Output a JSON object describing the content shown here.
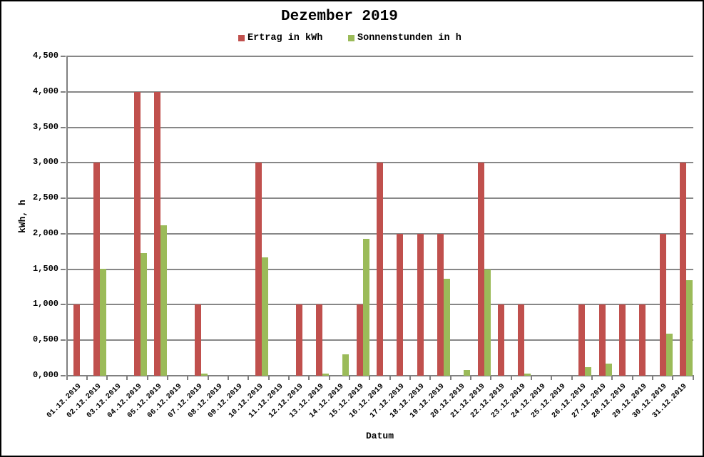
{
  "title": "Dezember 2019",
  "legend": [
    {
      "label": "Ertrag in kWh",
      "color": "#C0504D"
    },
    {
      "label": "Sonnenstunden in h",
      "color": "#9BBB59"
    }
  ],
  "axes": {
    "x_title": "Datum",
    "y_title": "kWh, h",
    "y_tick_labels": [
      "0,000",
      "0,500",
      "1,000",
      "1,500",
      "2,000",
      "2,500",
      "3,000",
      "3,500",
      "4,000",
      "4,500"
    ]
  },
  "colors": {
    "gridline": "#878787",
    "axis": "#808080",
    "frame_border": "#000000",
    "background": "#FFFFFF"
  },
  "chart_data": {
    "type": "bar",
    "title": "Dezember 2019",
    "xlabel": "Datum",
    "ylabel": "kWh, h",
    "ylim": [
      0,
      4500
    ],
    "ytick_step": 500,
    "grid": true,
    "legend_position": "top",
    "categories": [
      "01.12.2019",
      "02.12.2019",
      "03.12.2019",
      "04.12.2019",
      "05.12.2019",
      "06.12.2019",
      "07.12.2019",
      "08.12.2019",
      "09.12.2019",
      "10.12.2019",
      "11.12.2019",
      "12.12.2019",
      "13.12.2019",
      "14.12.2019",
      "15.12.2019",
      "16.12.2019",
      "17.12.2019",
      "18.12.2019",
      "19.12.2019",
      "20.12.2019",
      "21.12.2019",
      "22.12.2019",
      "23.12.2019",
      "24.12.2019",
      "25.12.2019",
      "26.12.2019",
      "27.12.2019",
      "28.12.2019",
      "29.12.2019",
      "30.12.2019",
      "31.12.2019"
    ],
    "series": [
      {
        "name": "Ertrag in kWh",
        "color": "#C0504D",
        "values": [
          1000,
          3000,
          0,
          4000,
          4000,
          0,
          1000,
          0,
          0,
          3000,
          0,
          1000,
          1000,
          0,
          1000,
          3000,
          2000,
          2000,
          2000,
          0,
          3000,
          1000,
          1000,
          0,
          0,
          1000,
          1000,
          1000,
          1000,
          2000,
          3000
        ]
      },
      {
        "name": "Sonnenstunden in h",
        "color": "#9BBB59",
        "values": [
          0,
          1510,
          0,
          1730,
          2120,
          0,
          30,
          0,
          0,
          1670,
          0,
          0,
          30,
          300,
          1930,
          0,
          0,
          0,
          1370,
          80,
          1500,
          0,
          30,
          0,
          0,
          120,
          170,
          0,
          0,
          590,
          1350
        ]
      }
    ]
  }
}
